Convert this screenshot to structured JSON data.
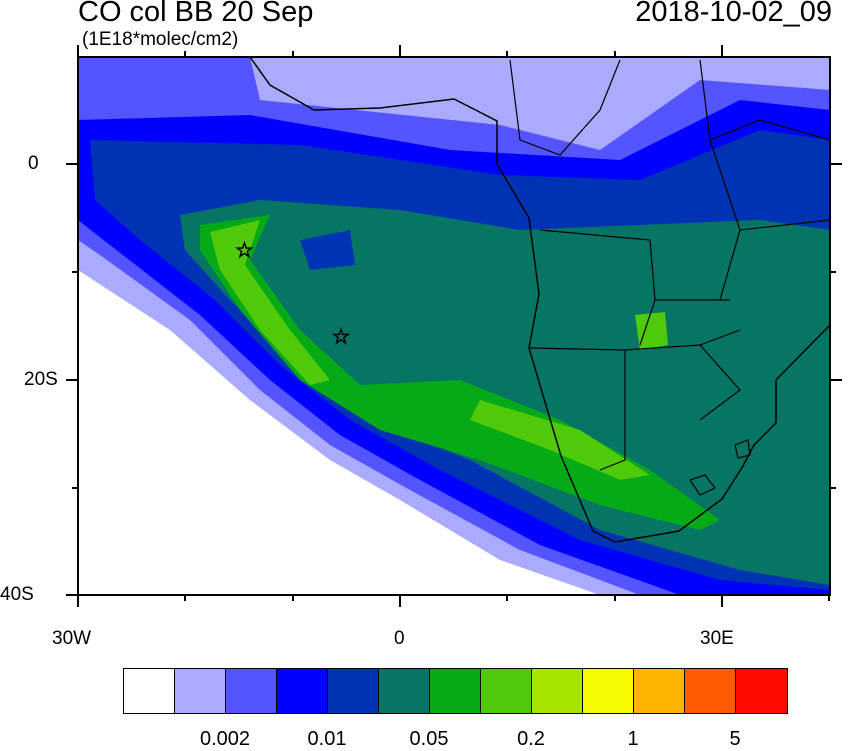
{
  "title": "CO col BB 20 Sep",
  "units": "(1E18*molec/cm2)",
  "timestamp": "2018-10-02_09",
  "axes": {
    "lon_labels": [
      "30W",
      "0",
      "30E"
    ],
    "lat_labels": [
      "0",
      "20S",
      "40S"
    ],
    "lon_range": [
      -30,
      40
    ],
    "lat_range": [
      -40,
      10
    ]
  },
  "markers": [
    {
      "type": "star",
      "lon": -14.5,
      "lat": -8
    },
    {
      "type": "star",
      "lon": -5.5,
      "lat": -16
    }
  ],
  "colorbar": {
    "colors": [
      "#ffffff",
      "#aaaaff",
      "#5555ff",
      "#0000ff",
      "#0033b3",
      "#067563",
      "#06aa16",
      "#4fc90a",
      "#a6e500",
      "#f5fa00",
      "#ffb400",
      "#ff5a00",
      "#ff0a00"
    ],
    "labels": [
      "0.002",
      "0.01",
      "0.05",
      "0.2",
      "1",
      "5"
    ]
  }
}
